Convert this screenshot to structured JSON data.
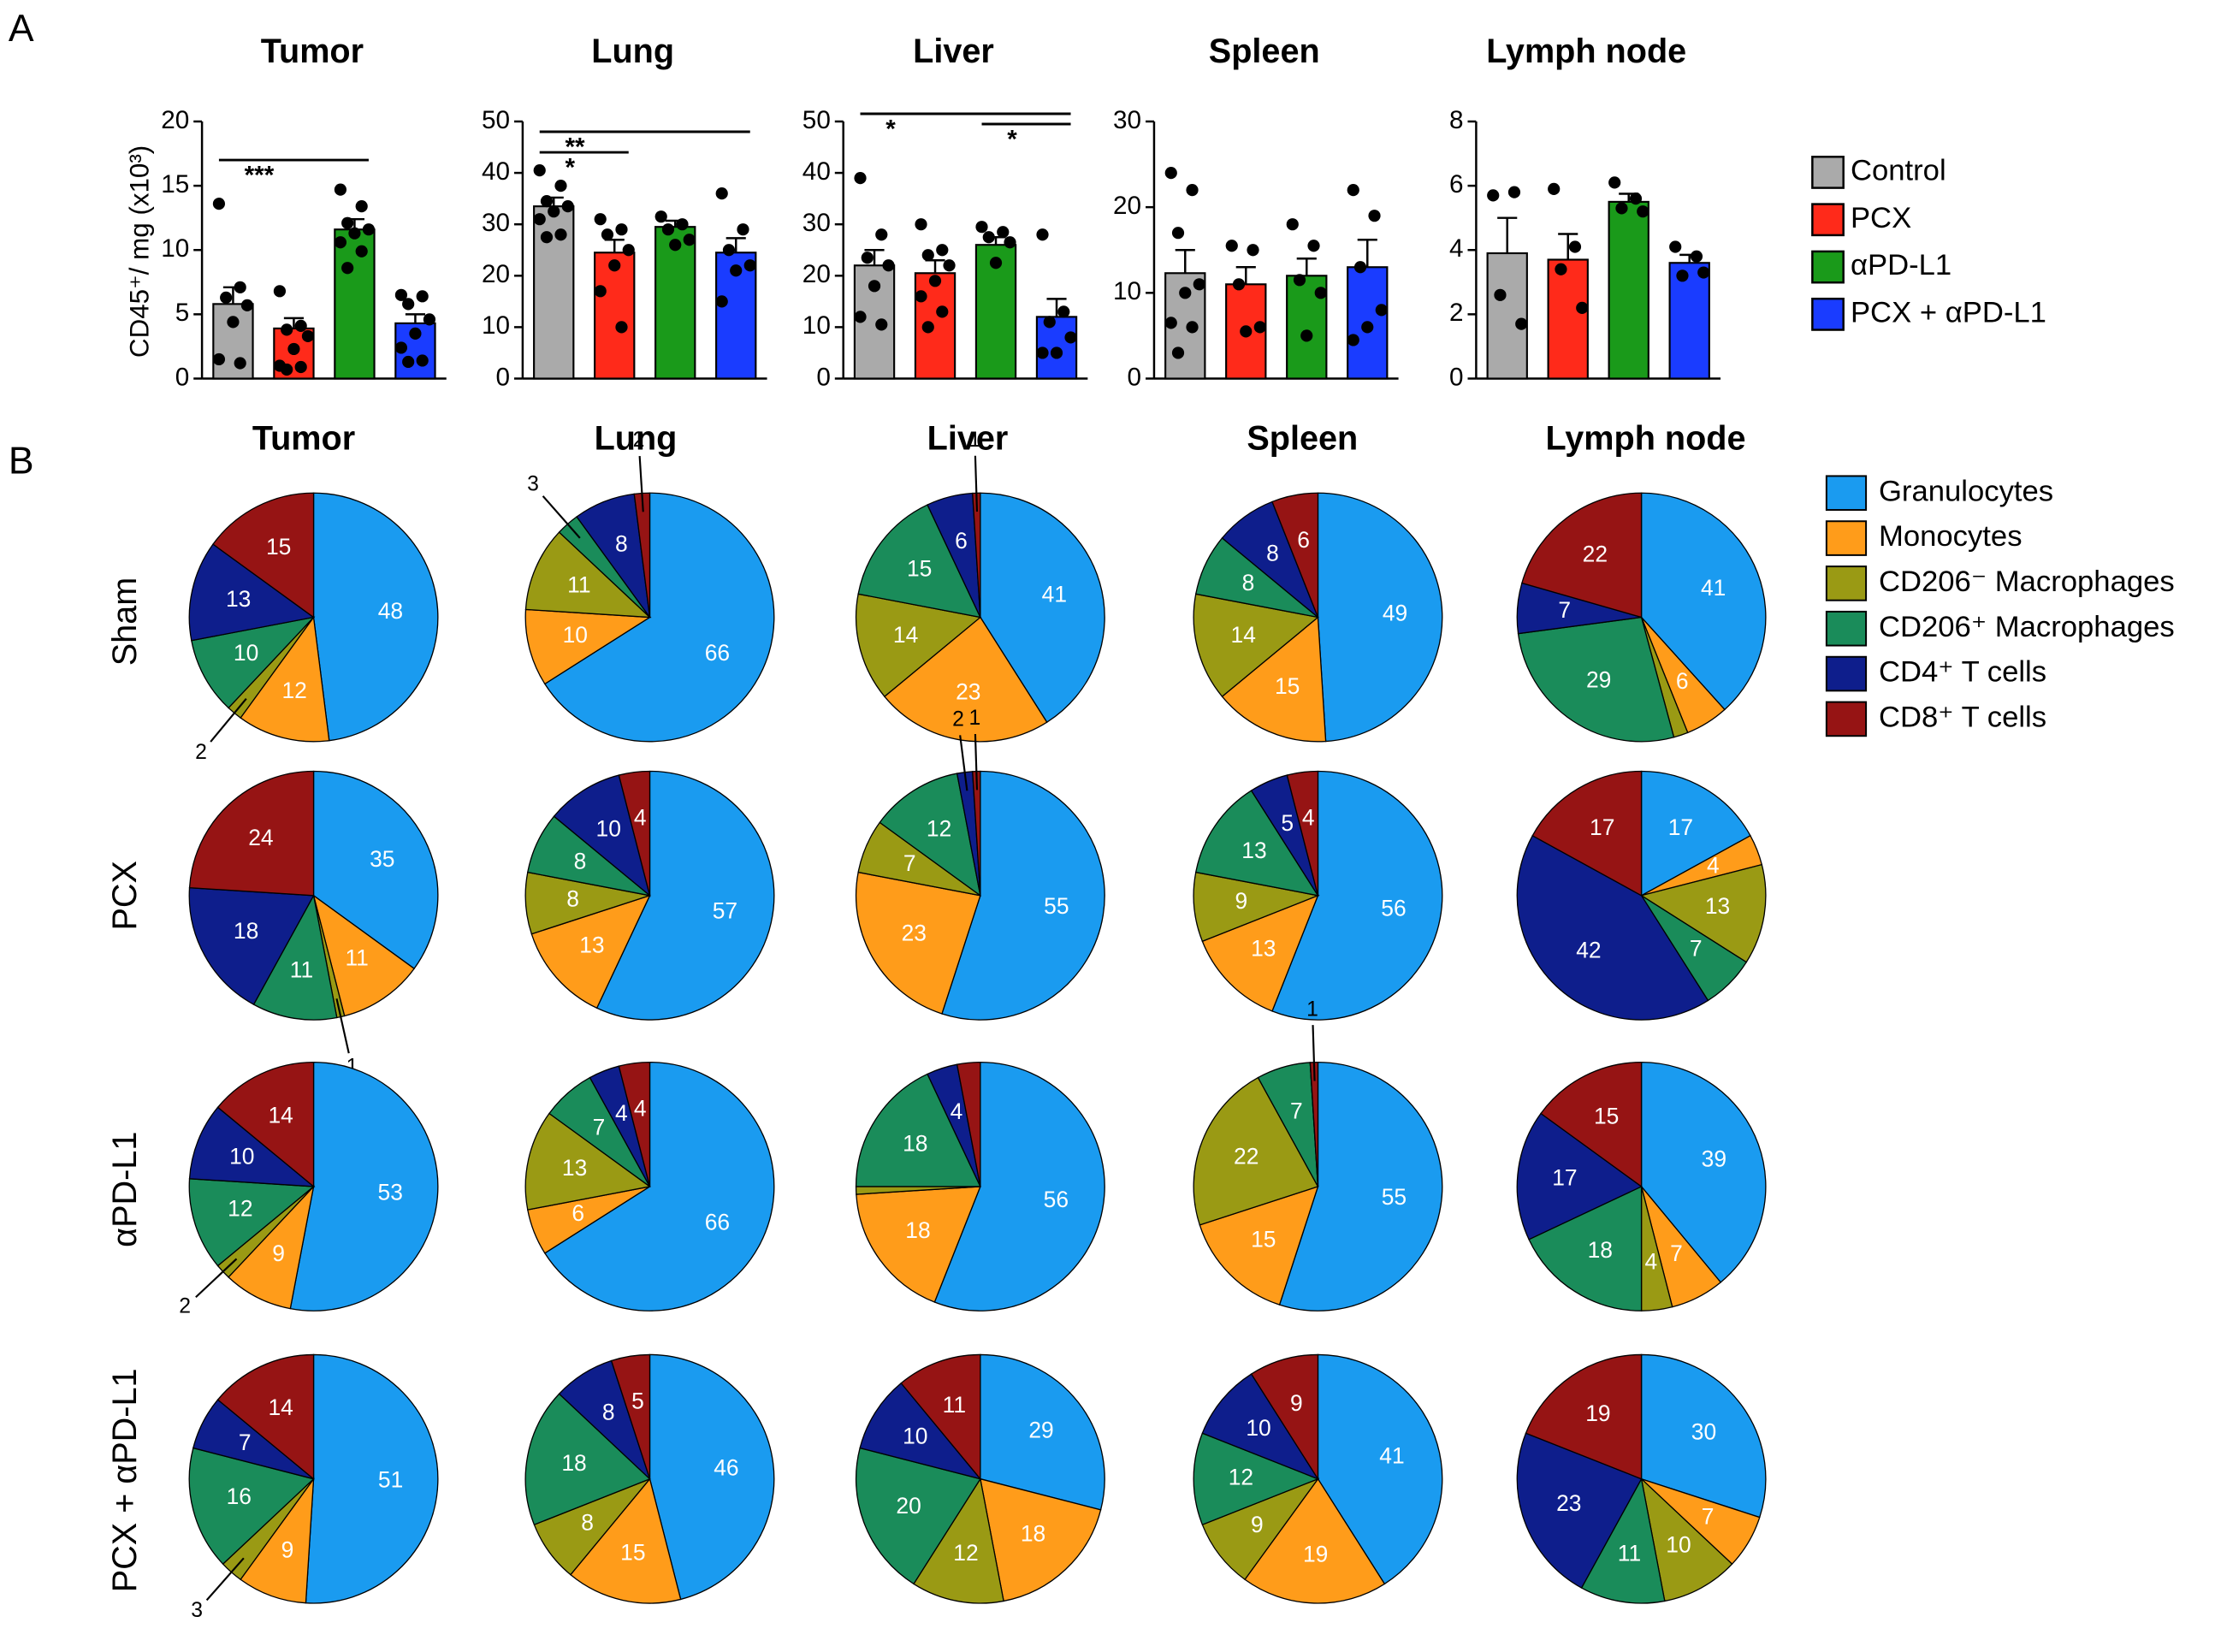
{
  "panel_labels": [
    "A",
    "B"
  ],
  "bar_legend": {
    "categories": [
      "Control",
      "PCX",
      "αPD-L1",
      "PCX + αPD-L1"
    ],
    "colors": [
      "#aaaaaa",
      "#ff2a1a",
      "#1a9a1a",
      "#1a3cff"
    ]
  },
  "pie_legend": {
    "categories": [
      "Granulocytes",
      "Monocytes",
      "CD206⁻ Macrophages",
      "CD206⁺ Macrophages",
      "CD4⁺ T cells",
      "CD8⁺ T cells"
    ],
    "colors": [
      "#1a9bf0",
      "#ff9c1a",
      "#9a9a14",
      "#1a8c5a",
      "#0e1e8c",
      "#961414"
    ]
  },
  "pie_columns": [
    "Tumor",
    "Lung",
    "Liver",
    "Spleen",
    "Lymph node"
  ],
  "pie_rows": [
    "Sham",
    "PCX",
    "αPD-L1",
    "PCX + αPD-L1"
  ],
  "chart_data": [
    {
      "type": "bar",
      "title": "Tumor",
      "ylabel": "CD45⁺/ mg (x10³)",
      "ylim": [
        0,
        20
      ],
      "yticks": [
        0,
        5,
        10,
        15,
        20
      ],
      "values": [
        5.8,
        3.9,
        11.6,
        4.3
      ],
      "errors": [
        1.3,
        0.8,
        0.8,
        0.7
      ],
      "points": [
        [
          13.6,
          7.1,
          6.3,
          5.7,
          4.4,
          1.5,
          1.2
        ],
        [
          6.8,
          4.1,
          3.8,
          3.3,
          2.3,
          1.0,
          0.9,
          0.7
        ],
        [
          14.7,
          13.4,
          12.1,
          11.6,
          11.3,
          10.6,
          9.9,
          8.6
        ],
        [
          6.5,
          6.4,
          5.8,
          4.6,
          3.5,
          2.4,
          1.4,
          1.3
        ]
      ],
      "annotations": [
        {
          "label": "***",
          "from": 0,
          "to": 2,
          "y": 17
        }
      ]
    },
    {
      "type": "bar",
      "title": "Lung",
      "ylim": [
        0,
        50
      ],
      "yticks": [
        0,
        10,
        20,
        30,
        40,
        50
      ],
      "values": [
        33.5,
        24.5,
        29.5,
        24.5
      ],
      "errors": [
        1.7,
        2.5,
        1.2,
        2.8
      ],
      "points": [
        [
          40.5,
          37.5,
          34.5,
          33.5,
          32.5,
          31,
          28,
          27.5
        ],
        [
          31,
          29,
          28,
          25,
          22,
          17,
          10
        ],
        [
          31.5,
          30,
          29,
          27,
          26
        ],
        [
          36,
          29,
          25,
          22,
          21,
          15
        ]
      ],
      "annotations": [
        {
          "label": "**",
          "from": 0,
          "to": 3,
          "y": 48
        },
        {
          "label": "*",
          "from": 0,
          "to": 1,
          "y": 44
        }
      ]
    },
    {
      "type": "bar",
      "title": "Liver",
      "ylim": [
        0,
        50
      ],
      "yticks": [
        0,
        10,
        20,
        30,
        40,
        50
      ],
      "values": [
        22,
        20.5,
        26,
        12
      ],
      "errors": [
        3,
        2.5,
        1.5,
        3.5
      ],
      "points": [
        [
          39,
          28,
          23.5,
          22,
          18,
          12,
          10.5
        ],
        [
          30,
          25,
          24,
          22,
          19,
          16,
          13,
          10
        ],
        [
          29.5,
          28.5,
          27.5,
          26.5,
          22.5
        ],
        [
          28,
          13,
          11,
          8,
          5,
          5
        ]
      ],
      "annotations": [
        {
          "label": "*",
          "from": 0,
          "to": 3,
          "y": 51.5
        },
        {
          "label": "*",
          "from": 2,
          "to": 3,
          "y": 49.5
        }
      ]
    },
    {
      "type": "bar",
      "title": "Spleen",
      "ylim": [
        0,
        30
      ],
      "yticks": [
        0,
        10,
        20,
        30
      ],
      "values": [
        12.3,
        11,
        12,
        13
      ],
      "errors": [
        2.7,
        2,
        2,
        3.2
      ],
      "points": [
        [
          24,
          22,
          17,
          11,
          10,
          6.5,
          6,
          3
        ],
        [
          15.5,
          15,
          11,
          6,
          5.5
        ],
        [
          18,
          15.5,
          11.5,
          10,
          5
        ],
        [
          22,
          19,
          13,
          8,
          6,
          4.5
        ]
      ]
    },
    {
      "type": "bar",
      "title": "Lymph node",
      "ylim": [
        0,
        8
      ],
      "yticks": [
        0,
        2,
        4,
        6,
        8
      ],
      "values": [
        3.9,
        3.7,
        5.5,
        3.6
      ],
      "errors": [
        1.1,
        0.8,
        0.25,
        0.25
      ],
      "points": [
        [
          5.7,
          5.8,
          2.6,
          1.7
        ],
        [
          5.9,
          4.1,
          3.4,
          2.2
        ],
        [
          6.1,
          5.6,
          5.3,
          5.2
        ],
        [
          4.1,
          3.8,
          3.2,
          3.3
        ]
      ]
    },
    {
      "type": "pie",
      "values": [
        48,
        12,
        2,
        10,
        13,
        15
      ]
    },
    {
      "type": "pie",
      "values": [
        66,
        10,
        11,
        3,
        8,
        2
      ]
    },
    {
      "type": "pie",
      "values": [
        41,
        23,
        14,
        15,
        6,
        1
      ]
    },
    {
      "type": "pie",
      "values": [
        49,
        15,
        14,
        8,
        8,
        6
      ]
    },
    {
      "type": "pie",
      "values": [
        41,
        6,
        2,
        29,
        7,
        22
      ],
      "value_labels": [
        "41",
        "6",
        null,
        "29",
        "7",
        "22"
      ]
    },
    {
      "type": "pie",
      "values": [
        35,
        11,
        1,
        11,
        18,
        24
      ]
    },
    {
      "type": "pie",
      "values": [
        57,
        13,
        8,
        8,
        10,
        4
      ]
    },
    {
      "type": "pie",
      "values": [
        55,
        23,
        7,
        12,
        2,
        1
      ]
    },
    {
      "type": "pie",
      "values": [
        56,
        13,
        9,
        13,
        5,
        4
      ]
    },
    {
      "type": "pie",
      "values": [
        17,
        4,
        13,
        7,
        42,
        17
      ]
    },
    {
      "type": "pie",
      "values": [
        53,
        9,
        2,
        12,
        10,
        14
      ]
    },
    {
      "type": "pie",
      "values": [
        66,
        6,
        13,
        7,
        4,
        4
      ]
    },
    {
      "type": "pie",
      "values": [
        56,
        18,
        1,
        18,
        4,
        3
      ],
      "value_labels": [
        "56",
        "18",
        null,
        "18",
        "4",
        null
      ]
    },
    {
      "type": "pie",
      "values": [
        55,
        15,
        22,
        7,
        0,
        1
      ],
      "value_labels": [
        "55",
        "15",
        "22",
        "7",
        null,
        "1"
      ]
    },
    {
      "type": "pie",
      "values": [
        39,
        7,
        4,
        18,
        17,
        15
      ]
    },
    {
      "type": "pie",
      "values": [
        51,
        9,
        3,
        16,
        7,
        14
      ]
    },
    {
      "type": "pie",
      "values": [
        46,
        15,
        8,
        18,
        8,
        5
      ]
    },
    {
      "type": "pie",
      "values": [
        29,
        18,
        12,
        20,
        10,
        11
      ]
    },
    {
      "type": "pie",
      "values": [
        41,
        19,
        9,
        12,
        10,
        9
      ]
    },
    {
      "type": "pie",
      "values": [
        30,
        7,
        10,
        11,
        23,
        19
      ]
    }
  ]
}
